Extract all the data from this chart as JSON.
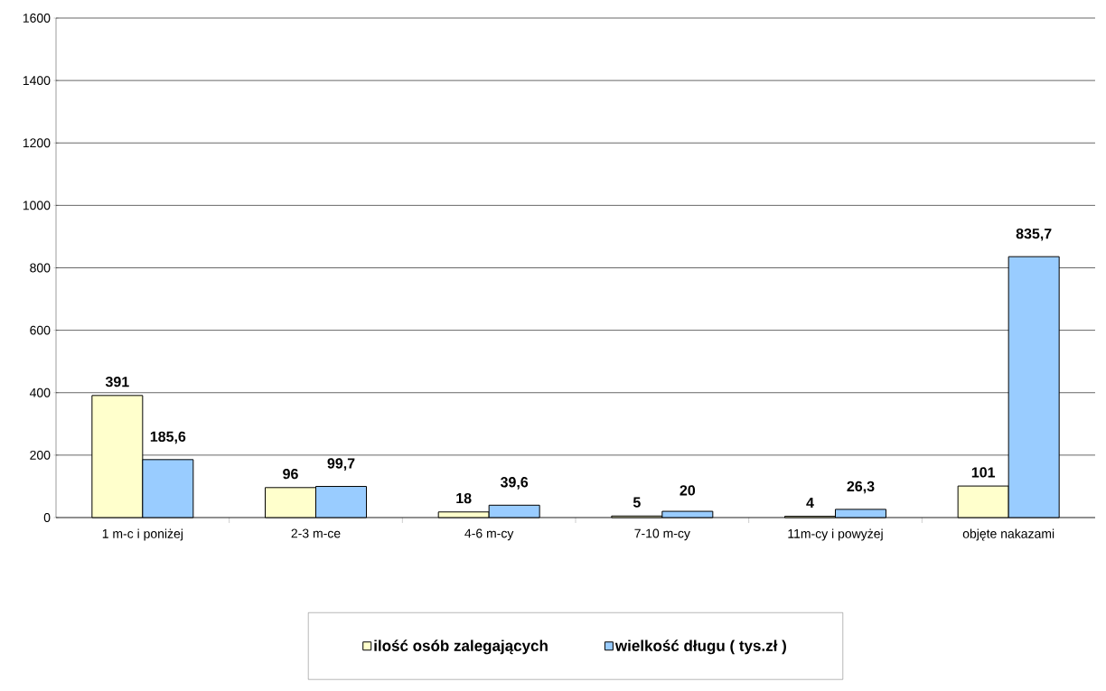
{
  "chart_data": {
    "type": "bar",
    "categories": [
      "1 m-c i poniżej",
      "2-3 m-ce",
      "4-6 m-cy",
      "7-10 m-cy",
      "11m-cy i powyżej",
      "objęte nakazami"
    ],
    "series": [
      {
        "name": "ilość osób zalegających",
        "color": "#ffffcc",
        "values": [
          391,
          96,
          18,
          5,
          4,
          101
        ],
        "value_labels": [
          "391",
          "96",
          "18",
          "5",
          "4",
          "101"
        ]
      },
      {
        "name": "wielkość długu ( tys.zł )",
        "color": "#99ccff",
        "values": [
          185.6,
          99.7,
          39.6,
          20,
          26.3,
          835.7
        ],
        "value_labels": [
          "185,6",
          "99,7",
          "39,6",
          "20",
          "26,3",
          "835,7"
        ]
      }
    ],
    "ylim": [
      0,
      1600
    ],
    "yticks": [
      0,
      200,
      400,
      600,
      800,
      1000,
      1200,
      1400,
      1600
    ],
    "grid": "y",
    "legend": "bottom"
  }
}
